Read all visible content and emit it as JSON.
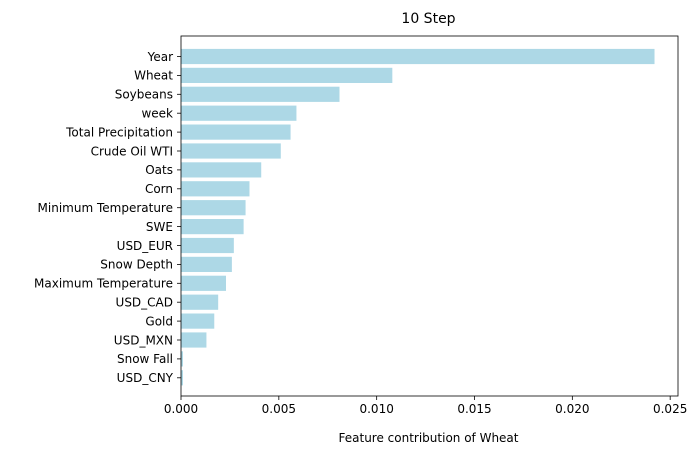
{
  "chart_data": {
    "type": "bar",
    "orientation": "horizontal",
    "title": "10 Step",
    "xlabel": "Feature contribution of Wheat",
    "ylabel": "",
    "xlim": [
      0,
      0.0254
    ],
    "xticks": [
      0.0,
      0.005,
      0.01,
      0.015,
      0.02,
      0.025
    ],
    "xtick_labels": [
      "0.000",
      "0.005",
      "0.010",
      "0.015",
      "0.020",
      "0.025"
    ],
    "bar_color": "#add8e6",
    "grid": false,
    "categories": [
      "Year",
      "Wheat",
      "Soybeans",
      "week",
      "Total Precipitation",
      "Crude Oil WTI",
      "Oats",
      "Corn",
      "Minimum Temperature",
      "SWE",
      "USD_EUR",
      "Snow Depth",
      "Maximum Temperature",
      "USD_CAD",
      "Gold",
      "USD_MXN",
      "Snow Fall",
      "USD_CNY"
    ],
    "values": [
      0.0242,
      0.0108,
      0.0081,
      0.0059,
      0.0056,
      0.0051,
      0.0041,
      0.0035,
      0.0033,
      0.0032,
      0.0027,
      0.0026,
      0.0023,
      0.0019,
      0.0017,
      0.0013,
      0.0001,
      0.0001
    ]
  }
}
